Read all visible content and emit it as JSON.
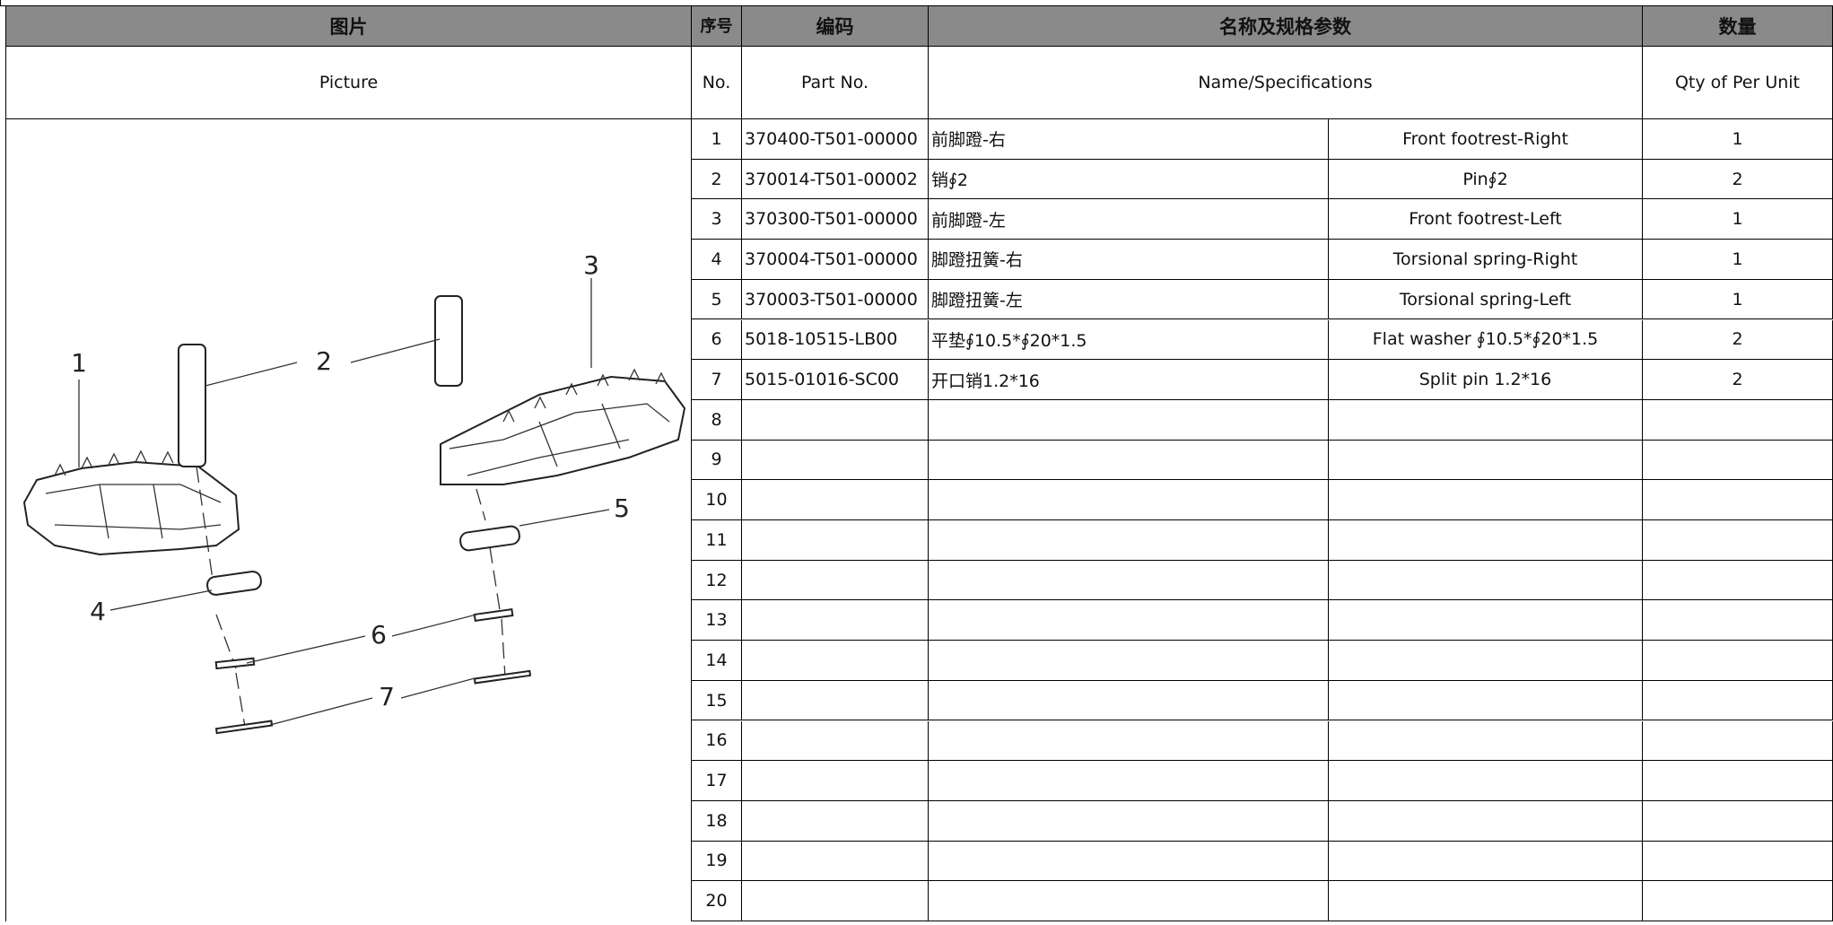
{
  "table": {
    "header_cn": [
      "图片",
      "序号",
      "编码",
      "名称及规格参数",
      "数量"
    ],
    "header_en": [
      "Picture",
      "No.",
      "Part  No.",
      "Name/Specifications",
      "Qty of Per Unit"
    ],
    "rows": [
      [
        1,
        "370400-T501-00000",
        "前脚蹬-右",
        "Front footrest-Right",
        1
      ],
      [
        2,
        "370014-T501-00002",
        "销∮2",
        "Pin∮2",
        2
      ],
      [
        3,
        "370300-T501-00000",
        "前脚蹬-左",
        "Front footrest-Left",
        1
      ],
      [
        4,
        "370004-T501-00000",
        "脚蹬扭簧-右",
        "Torsional spring-Right",
        1
      ],
      [
        5,
        "370003-T501-00000",
        "脚蹬扭簧-左",
        "Torsional spring-Left",
        1
      ],
      [
        6,
        "5018-10515-LB00",
        "平垫∮10.5*∮20*1.5",
        "Flat washer ∮10.5*∮20*1.5",
        2
      ],
      [
        7,
        "5015-01016-SC00",
        "开口销1.2*16",
        "Split pin 1.2*16",
        2
      ],
      [
        8
      ],
      [
        9
      ],
      [
        10
      ],
      [
        11
      ],
      [
        12
      ],
      [
        13
      ],
      [
        14
      ],
      [
        15
      ],
      [
        16
      ],
      [
        17
      ],
      [
        18
      ],
      [
        19
      ],
      [
        20
      ]
    ]
  },
  "drawing": {
    "callouts": [
      1,
      2,
      3,
      4,
      5,
      6,
      7
    ]
  }
}
